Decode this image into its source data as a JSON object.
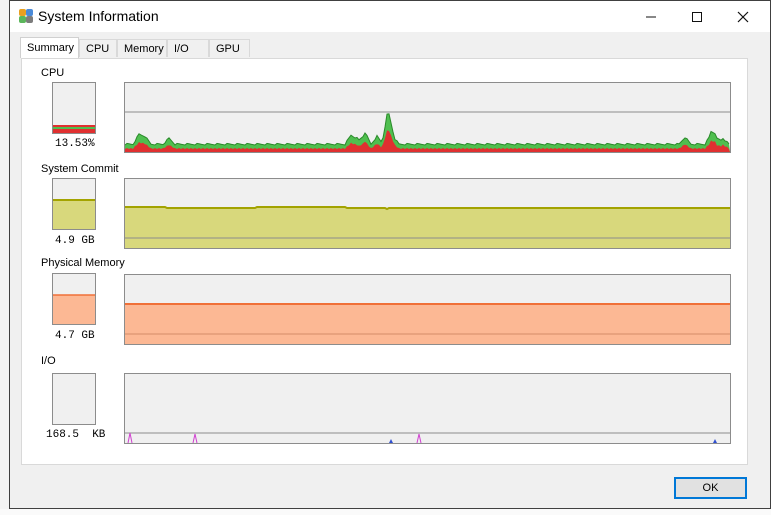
{
  "window": {
    "title": "System Information"
  },
  "tabs": [
    "Summary",
    "CPU",
    "Memory",
    "I/O",
    "GPU"
  ],
  "active_tab": "Summary",
  "sections": {
    "cpu": {
      "label": "CPU",
      "value": "13.53%",
      "level": 0.13
    },
    "commit": {
      "label": "System Commit",
      "value": "4.9 GB",
      "level": 0.6
    },
    "physical": {
      "label": "Physical Memory",
      "value": "4.7 GB",
      "level": 0.6
    },
    "io": {
      "label": "I/O",
      "value": "168.5  KB",
      "level": 0.0
    }
  },
  "colors": {
    "cpu_total": "#4fbf4f",
    "cpu_kernel": "#e03030",
    "commit_fill": "#d8d87c",
    "commit_line": "#a3a300",
    "physical_fill": "#fcb894",
    "physical_line": "#f07038",
    "io_read": "#3050d0",
    "io_write": "#d040d0",
    "ok_border": "#0078d7"
  },
  "buttons": {
    "ok": "OK"
  },
  "icons": {
    "minimize": "minimize-icon",
    "maximize": "maximize-icon",
    "close": "close-icon",
    "app": "system-information-icon"
  }
}
